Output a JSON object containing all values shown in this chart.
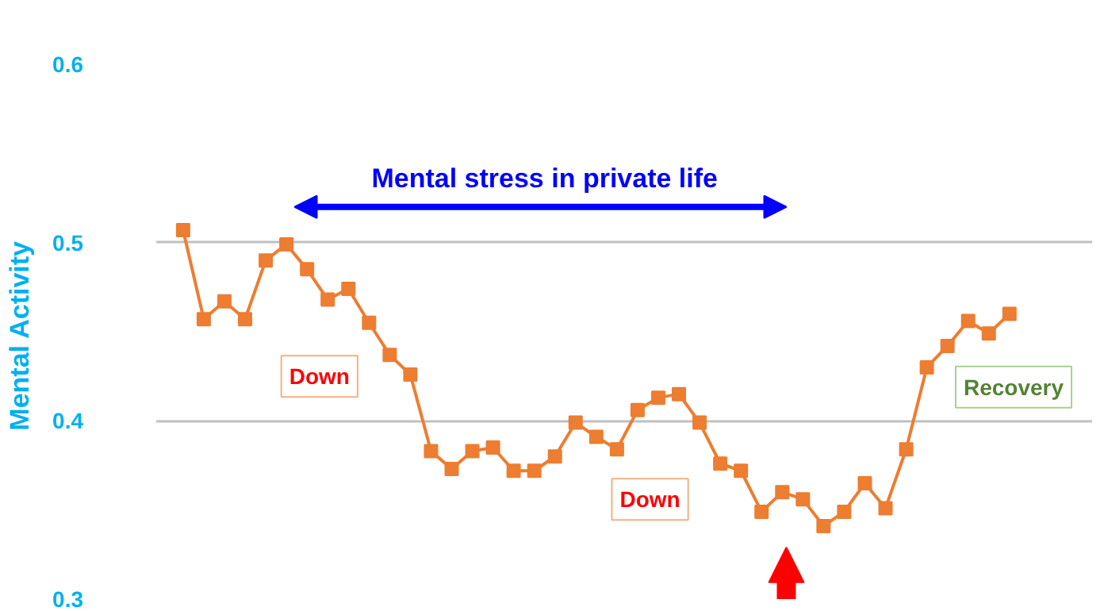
{
  "chart_data": {
    "type": "line",
    "ylabel": "Mental  Activity",
    "categories": [
      null,
      null,
      null,
      null,
      null,
      null,
      null,
      null,
      null,
      null,
      null,
      null,
      null,
      null,
      null,
      null,
      null,
      null,
      null,
      null,
      null,
      null,
      null,
      null,
      null,
      null,
      null,
      null,
      null,
      null,
      null,
      null,
      null,
      null,
      null,
      null,
      null,
      null,
      null,
      null,
      null
    ],
    "series": [
      {
        "color": "#ed7d31",
        "values": [
          0.507,
          0.457,
          0.467,
          0.457,
          0.49,
          0.499,
          0.485,
          0.468,
          0.474,
          0.455,
          0.437,
          0.426,
          0.383,
          0.373,
          0.383,
          0.385,
          0.372,
          0.372,
          0.38,
          0.399,
          0.391,
          0.384,
          0.406,
          0.413,
          0.415,
          0.399,
          0.376,
          0.372,
          0.349,
          0.36,
          0.356,
          0.341,
          0.349,
          0.365,
          0.351,
          0.384,
          0.43,
          0.442,
          0.456,
          0.449,
          0.46
        ]
      }
    ],
    "ylim": [
      0.3,
      0.6
    ],
    "yticks": [
      0.3,
      0.4,
      0.5,
      0.6
    ],
    "grid": "y",
    "marker": "square",
    "line_style": "solid",
    "tick_labels": "y",
    "annotations": [
      "Mental stress in private life",
      "Down",
      "Down",
      "Recovery"
    ]
  }
}
